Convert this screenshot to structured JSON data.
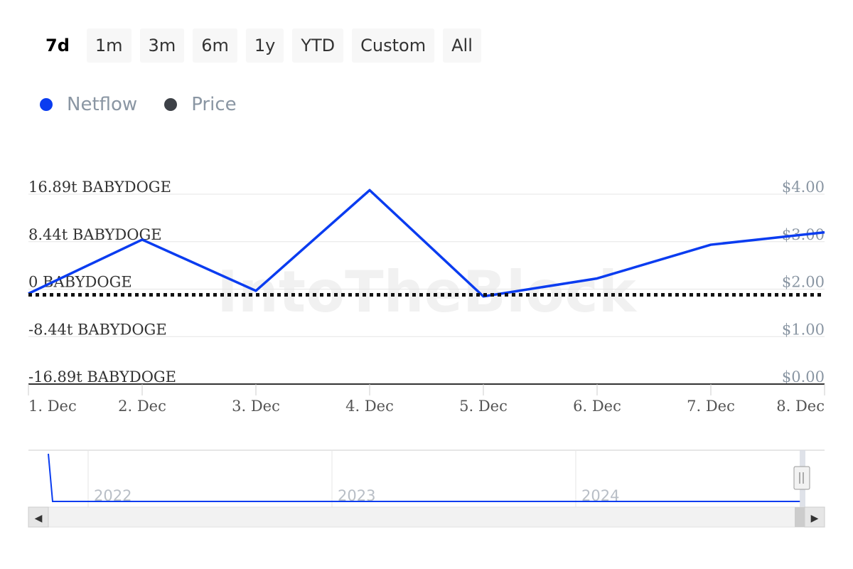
{
  "range_buttons": [
    {
      "label": "7d",
      "active": true
    },
    {
      "label": "1m",
      "active": false
    },
    {
      "label": "3m",
      "active": false
    },
    {
      "label": "6m",
      "active": false
    },
    {
      "label": "1y",
      "active": false
    },
    {
      "label": "YTD",
      "active": false
    },
    {
      "label": "Custom",
      "active": false
    },
    {
      "label": "All",
      "active": false
    }
  ],
  "legend": [
    {
      "label": "Netflow",
      "color": "#0a3cf0"
    },
    {
      "label": "Price",
      "color": "#3d4147"
    }
  ],
  "watermark": "IntoTheBlock",
  "chart_data": {
    "type": "line",
    "categories": [
      "1. Dec",
      "2. Dec",
      "3. Dec",
      "4. Dec",
      "5. Dec",
      "6. Dec",
      "7. Dec",
      "8. Dec"
    ],
    "y_left_ticks": [
      "16.89t BABYDOGE",
      "8.44t BABYDOGE",
      "0 BABYDOGE",
      "-8.44t BABYDOGE",
      "-16.89t BABYDOGE"
    ],
    "y_left_range": [
      -16.89,
      16.89
    ],
    "y_right_ticks": [
      "$4.00",
      "$3.00",
      "$2.00",
      "$1.00",
      "$0.00"
    ],
    "y_right_range": [
      0,
      4
    ],
    "grid": true,
    "series": [
      {
        "name": "Netflow",
        "axis": "left",
        "color": "#0a3cf0",
        "values": [
          -0.8,
          8.8,
          -0.3,
          17.6,
          -1.3,
          1.9,
          7.9,
          10.1
        ]
      },
      {
        "name": "Price",
        "axis": "right",
        "color": "#111111",
        "style": "dotted",
        "values": [
          1.88,
          1.88,
          1.88,
          1.88,
          1.88,
          1.88,
          1.88,
          1.88
        ]
      }
    ]
  },
  "navigator": {
    "year_labels": [
      "2022",
      "2023",
      "2024"
    ],
    "scroll_left_label": "◀",
    "scroll_right_label": "▶"
  }
}
